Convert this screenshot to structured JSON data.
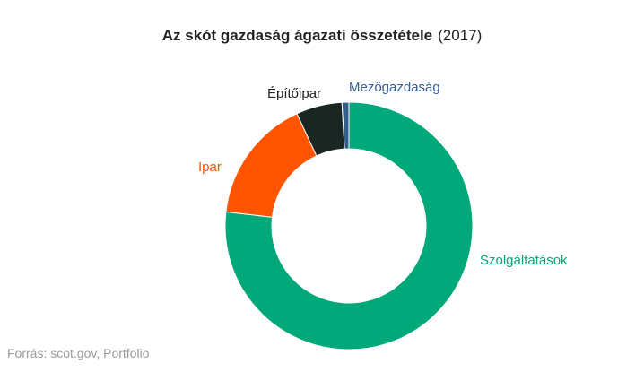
{
  "title": "Az skót gazdaság ágazati összetétele",
  "subtitle": "(2017)",
  "source": "Forrás: scot.gov, Portfolio",
  "chart_data": {
    "type": "pie",
    "donut": true,
    "title": "Az skót gazdaság ágazati összetétele",
    "subtitle": "(2017)",
    "legend": "none",
    "slices": [
      {
        "label": "Szolgáltatások",
        "value": 76.8,
        "color": "#00a87a"
      },
      {
        "label": "Ipar",
        "value": 16.3,
        "color": "#ff5400"
      },
      {
        "label": "Építőipar",
        "value": 6.0,
        "color": "#1a2621"
      },
      {
        "label": "Mezőgazdaság",
        "value": 0.9,
        "color": "#355c8c"
      }
    ]
  }
}
